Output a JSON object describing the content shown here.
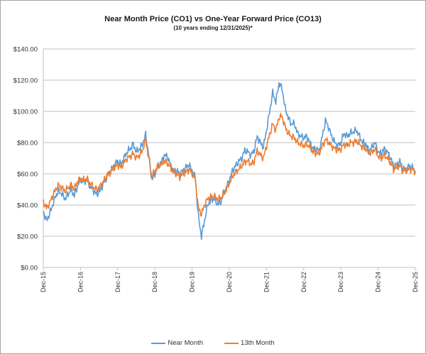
{
  "chart_data": {
    "type": "line",
    "title": "Near Month Price (CO1) vs One-Year Forward Price  (CO13)",
    "subtitle": "(10 years ending  12/31/2025)*",
    "xlabel": "",
    "ylabel": "",
    "ylim": [
      0,
      140
    ],
    "y_ticks": [
      0,
      20,
      40,
      60,
      80,
      100,
      120,
      140
    ],
    "y_tick_labels": [
      "$0.00",
      "$20.00",
      "$40.00",
      "$60.00",
      "$80.00",
      "$100.00",
      "$120.00",
      "$140.00"
    ],
    "x_tick_labels": [
      "Dec-15",
      "Dec-16",
      "Dec-17",
      "Dec-18",
      "Dec-19",
      "Dec-20",
      "Dec-21",
      "Dec-22",
      "Dec-23",
      "Dec-24",
      "Dec-25"
    ],
    "x_range": [
      "Dec-15",
      "Dec-25"
    ],
    "x_unit": "months since Dec-15",
    "grid": "horizontal",
    "legend_position": "bottom",
    "series": [
      {
        "name": "Near Month",
        "color": "#5b9bd5",
        "x_months": [
          0,
          1,
          2,
          3,
          4,
          5,
          6,
          7,
          8,
          9,
          10,
          11,
          12,
          13,
          14,
          15,
          16,
          17,
          18,
          19,
          20,
          21,
          22,
          23,
          24,
          25,
          26,
          27,
          28,
          29,
          30,
          31,
          32,
          33,
          34,
          35,
          36,
          37,
          38,
          39,
          40,
          41,
          42,
          43,
          44,
          45,
          46,
          47,
          48,
          49,
          50,
          51,
          52,
          53,
          54,
          55,
          56,
          57,
          58,
          59,
          60,
          61,
          62,
          63,
          64,
          65,
          66,
          67,
          68,
          69,
          70,
          71,
          72,
          73,
          74,
          75,
          76,
          77,
          78,
          79,
          80,
          81,
          82,
          83,
          84,
          85,
          86,
          87,
          88,
          89,
          90,
          91,
          92,
          93,
          94,
          95,
          96,
          97,
          98,
          99,
          100,
          101,
          102,
          103,
          104,
          105,
          106,
          107,
          108,
          109,
          110,
          111,
          112,
          113,
          114,
          115,
          116,
          117,
          118,
          119,
          120
        ],
        "values": [
          36,
          30,
          34,
          40,
          46,
          49,
          47,
          44,
          47,
          50,
          46,
          52,
          56,
          55,
          56,
          52,
          50,
          47,
          48,
          52,
          56,
          60,
          63,
          66,
          68,
          66,
          70,
          74,
          76,
          79,
          74,
          76,
          79,
          85,
          72,
          56,
          60,
          65,
          67,
          72,
          71,
          66,
          62,
          62,
          60,
          62,
          64,
          66,
          62,
          58,
          33,
          20,
          30,
          40,
          43,
          44,
          41,
          41,
          46,
          51,
          56,
          62,
          65,
          68,
          70,
          75,
          74,
          72,
          75,
          84,
          80,
          77,
          88,
          100,
          112,
          106,
          118,
          115,
          102,
          96,
          92,
          92,
          86,
          84,
          83,
          84,
          80,
          76,
          76,
          75,
          84,
          94,
          90,
          84,
          80,
          78,
          80,
          86,
          84,
          86,
          87,
          88,
          84,
          80,
          79,
          75,
          77,
          80,
          74,
          73,
          76,
          74,
          70,
          65,
          66,
          68,
          63,
          63,
          65,
          64,
          61
        ]
      },
      {
        "name": "13th Month",
        "color": "#ed7d31",
        "x_months": [
          0,
          1,
          2,
          3,
          4,
          5,
          6,
          7,
          8,
          9,
          10,
          11,
          12,
          13,
          14,
          15,
          16,
          17,
          18,
          19,
          20,
          21,
          22,
          23,
          24,
          25,
          26,
          27,
          28,
          29,
          30,
          31,
          32,
          33,
          34,
          35,
          36,
          37,
          38,
          39,
          40,
          41,
          42,
          43,
          44,
          45,
          46,
          47,
          48,
          49,
          50,
          51,
          52,
          53,
          54,
          55,
          56,
          57,
          58,
          59,
          60,
          61,
          62,
          63,
          64,
          65,
          66,
          67,
          68,
          69,
          70,
          71,
          72,
          73,
          74,
          75,
          76,
          77,
          78,
          79,
          80,
          81,
          82,
          83,
          84,
          85,
          86,
          87,
          88,
          89,
          90,
          91,
          92,
          93,
          94,
          95,
          96,
          97,
          98,
          99,
          100,
          101,
          102,
          103,
          104,
          105,
          106,
          107,
          108,
          109,
          110,
          111,
          112,
          113,
          114,
          115,
          116,
          117,
          118,
          119,
          120
        ],
        "values": [
          42,
          38,
          41,
          46,
          50,
          53,
          51,
          49,
          51,
          53,
          50,
          55,
          57,
          56,
          57,
          54,
          52,
          50,
          51,
          54,
          57,
          60,
          62,
          64,
          66,
          64,
          67,
          70,
          71,
          73,
          70,
          72,
          75,
          82,
          70,
          58,
          62,
          65,
          66,
          68,
          67,
          64,
          61,
          60,
          58,
          60,
          61,
          63,
          60,
          57,
          38,
          34,
          40,
          44,
          45,
          46,
          44,
          44,
          47,
          50,
          54,
          58,
          61,
          63,
          65,
          68,
          68,
          66,
          68,
          75,
          72,
          70,
          78,
          85,
          92,
          88,
          96,
          97,
          90,
          86,
          84,
          83,
          80,
          79,
          78,
          79,
          77,
          74,
          73,
          73,
          78,
          82,
          80,
          78,
          76,
          75,
          76,
          79,
          78,
          80,
          80,
          81,
          79,
          77,
          76,
          73,
          74,
          76,
          71,
          70,
          72,
          70,
          67,
          63,
          64,
          65,
          62,
          62,
          63,
          63,
          61
        ]
      }
    ]
  },
  "legend": {
    "items": [
      {
        "label": "Near Month",
        "color": "#5b9bd5"
      },
      {
        "label": "13th Month",
        "color": "#ed7d31"
      }
    ]
  }
}
